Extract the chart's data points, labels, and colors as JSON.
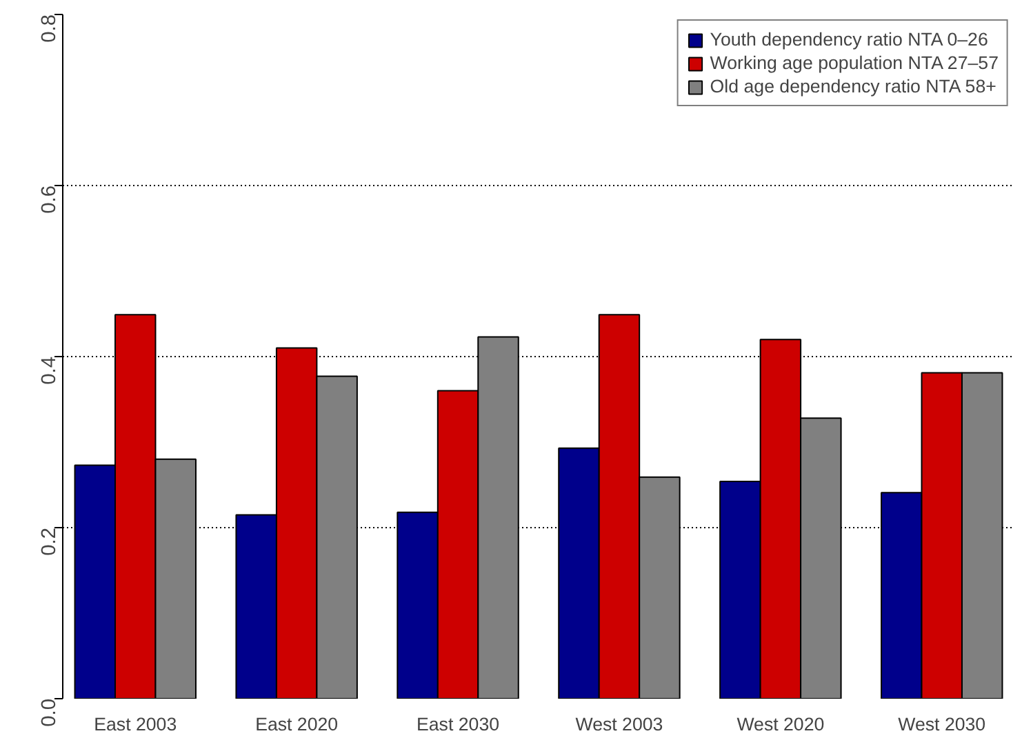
{
  "chart_data": {
    "type": "bar",
    "categories": [
      "East 2003",
      "East 2020",
      "East 2030",
      "West 2003",
      "West 2020",
      "West 2030"
    ],
    "series": [
      {
        "name": "Youth dependency ratio NTA 0–26",
        "color": "#00008b",
        "values": [
          0.273,
          0.215,
          0.218,
          0.293,
          0.254,
          0.241
        ]
      },
      {
        "name": "Working age population NTA 27–57",
        "color": "#cd0000",
        "values": [
          0.449,
          0.41,
          0.36,
          0.449,
          0.42,
          0.381
        ]
      },
      {
        "name": "Old age dependency ratio NTA 58+",
        "color": "#808080",
        "values": [
          0.28,
          0.377,
          0.423,
          0.259,
          0.328,
          0.381
        ]
      }
    ],
    "ylim": [
      0,
      0.8
    ],
    "yticks": [
      {
        "value": 0,
        "label": "0.0"
      },
      {
        "value": 0.2,
        "label": "0.2"
      },
      {
        "value": 0.4,
        "label": "0.4"
      },
      {
        "value": 0.6,
        "label": "0.6"
      },
      {
        "value": 0.8,
        "label": "0.8"
      }
    ],
    "grid": "y",
    "legend": "top right"
  }
}
